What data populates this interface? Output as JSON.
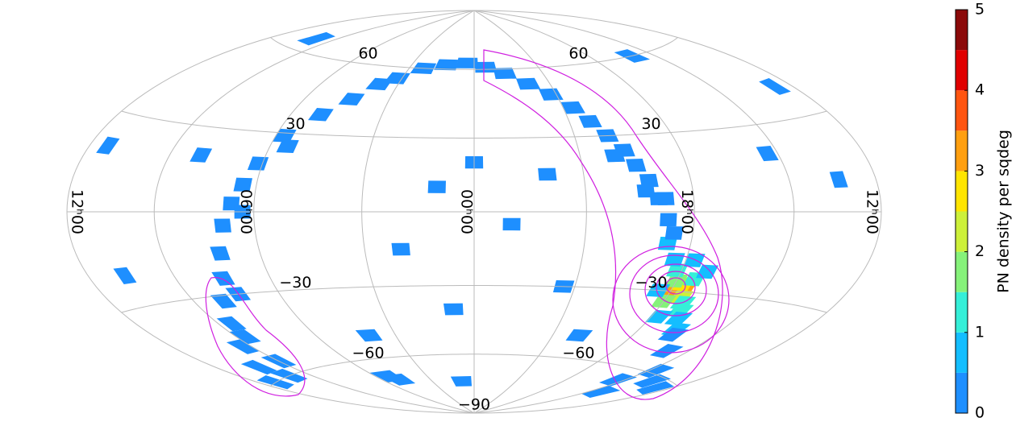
{
  "chart_data": {
    "type": "skymap",
    "colorbar_label": "PN density per sqdeg",
    "levels": [
      0,
      0.5,
      1,
      1.5,
      2,
      2.5,
      3,
      3.5,
      4,
      4.5,
      5
    ],
    "colors": [
      "#1e8fff",
      "#14beff",
      "#35efd8",
      "#86f27a",
      "#cdf03a",
      "#ffe500",
      "#ff9f10",
      "#ff5510",
      "#e00000",
      "#8b0a0a"
    ],
    "clim": [
      0,
      5
    ],
    "cticks": [
      0,
      1,
      2,
      3,
      4,
      5
    ],
    "dec_ticks": [
      {
        "value": 60,
        "label": "60"
      },
      {
        "value": 30,
        "label": "30"
      },
      {
        "value": -30,
        "label": "−30"
      },
      {
        "value": -60,
        "label": "−60"
      },
      {
        "value": -90,
        "label": "−90"
      }
    ],
    "ra_ticks": [
      {
        "value": 12,
        "label": "12ʰ00"
      },
      {
        "value": 6,
        "label": "06ʰ00"
      },
      {
        "value": 0,
        "label": "00ʰ00"
      },
      {
        "value": 18,
        "label": "18ʰ00"
      }
    ],
    "ra": [
      266,
      264,
      268,
      266,
      263,
      270,
      260,
      272,
      258,
      262,
      270,
      275,
      255,
      276,
      258,
      280,
      250,
      266,
      266,
      281,
      285,
      288,
      292,
      295,
      300,
      305,
      310,
      318,
      328,
      340,
      352,
      5,
      20,
      35,
      48,
      56,
      65,
      75,
      86,
      92,
      96,
      100,
      104,
      108,
      112,
      120,
      128,
      140,
      155,
      170,
      189,
      205,
      220,
      238,
      248,
      290,
      300,
      278,
      282,
      82,
      95,
      110,
      130,
      150,
      135,
      230,
      215,
      0,
      15,
      345,
      30,
      120,
      200,
      230,
      190,
      240,
      150,
      60,
      75,
      80,
      10,
      300,
      320,
      330,
      160,
      170,
      13
    ],
    "dec": [
      -29,
      -29,
      -30,
      -27,
      -32,
      -26,
      -34,
      -22,
      -37,
      -25,
      -34,
      -18,
      -40,
      -30,
      -22,
      -12,
      -44,
      -40,
      -18,
      -3,
      5,
      12,
      18,
      24,
      30,
      36,
      42,
      48,
      53,
      58,
      61,
      63,
      62,
      60,
      55,
      52,
      45,
      38,
      29,
      18,
      10,
      3,
      -5,
      -15,
      -24,
      -32,
      -40,
      -48,
      -55,
      -60,
      -63,
      -62,
      -59,
      -52,
      -46,
      8,
      22,
      -8,
      5,
      25,
      0,
      -30,
      -45,
      -60,
      -55,
      -65,
      -70,
      20,
      10,
      -5,
      -15,
      20,
      10,
      20,
      40,
      60,
      65,
      -50,
      -70,
      -68,
      -40,
      -50,
      -30,
      15,
      -20,
      20,
      -73
    ],
    "values": [
      4.2,
      3.2,
      3.4,
      2.6,
      2.2,
      1.8,
      1.4,
      1.2,
      1.1,
      1.3,
      1.5,
      0.8,
      0.8,
      0.9,
      0.9,
      0.7,
      0.7,
      0.6,
      0.6,
      0.4,
      0.4,
      0.3,
      0.3,
      0.3,
      0.3,
      0.3,
      0.3,
      0.3,
      0.3,
      0.3,
      0.3,
      0.3,
      0.3,
      0.3,
      0.3,
      0.3,
      0.3,
      0.3,
      0.3,
      0.3,
      0.3,
      0.3,
      0.3,
      0.3,
      0.3,
      0.3,
      0.3,
      0.3,
      0.3,
      0.3,
      0.3,
      0.3,
      0.3,
      0.3,
      0.3,
      0.3,
      0.3,
      0.4,
      0.3,
      0.3,
      0.3,
      0.3,
      0.3,
      0.3,
      0.3,
      0.3,
      0.3,
      0.2,
      0.2,
      0.2,
      0.2,
      0.2,
      0.2,
      0.2,
      0.2,
      0.2,
      0.2,
      0.2,
      0.3,
      0.3,
      0.2,
      0.2,
      0.2,
      0.2,
      0.2,
      0.2,
      0.2
    ]
  }
}
